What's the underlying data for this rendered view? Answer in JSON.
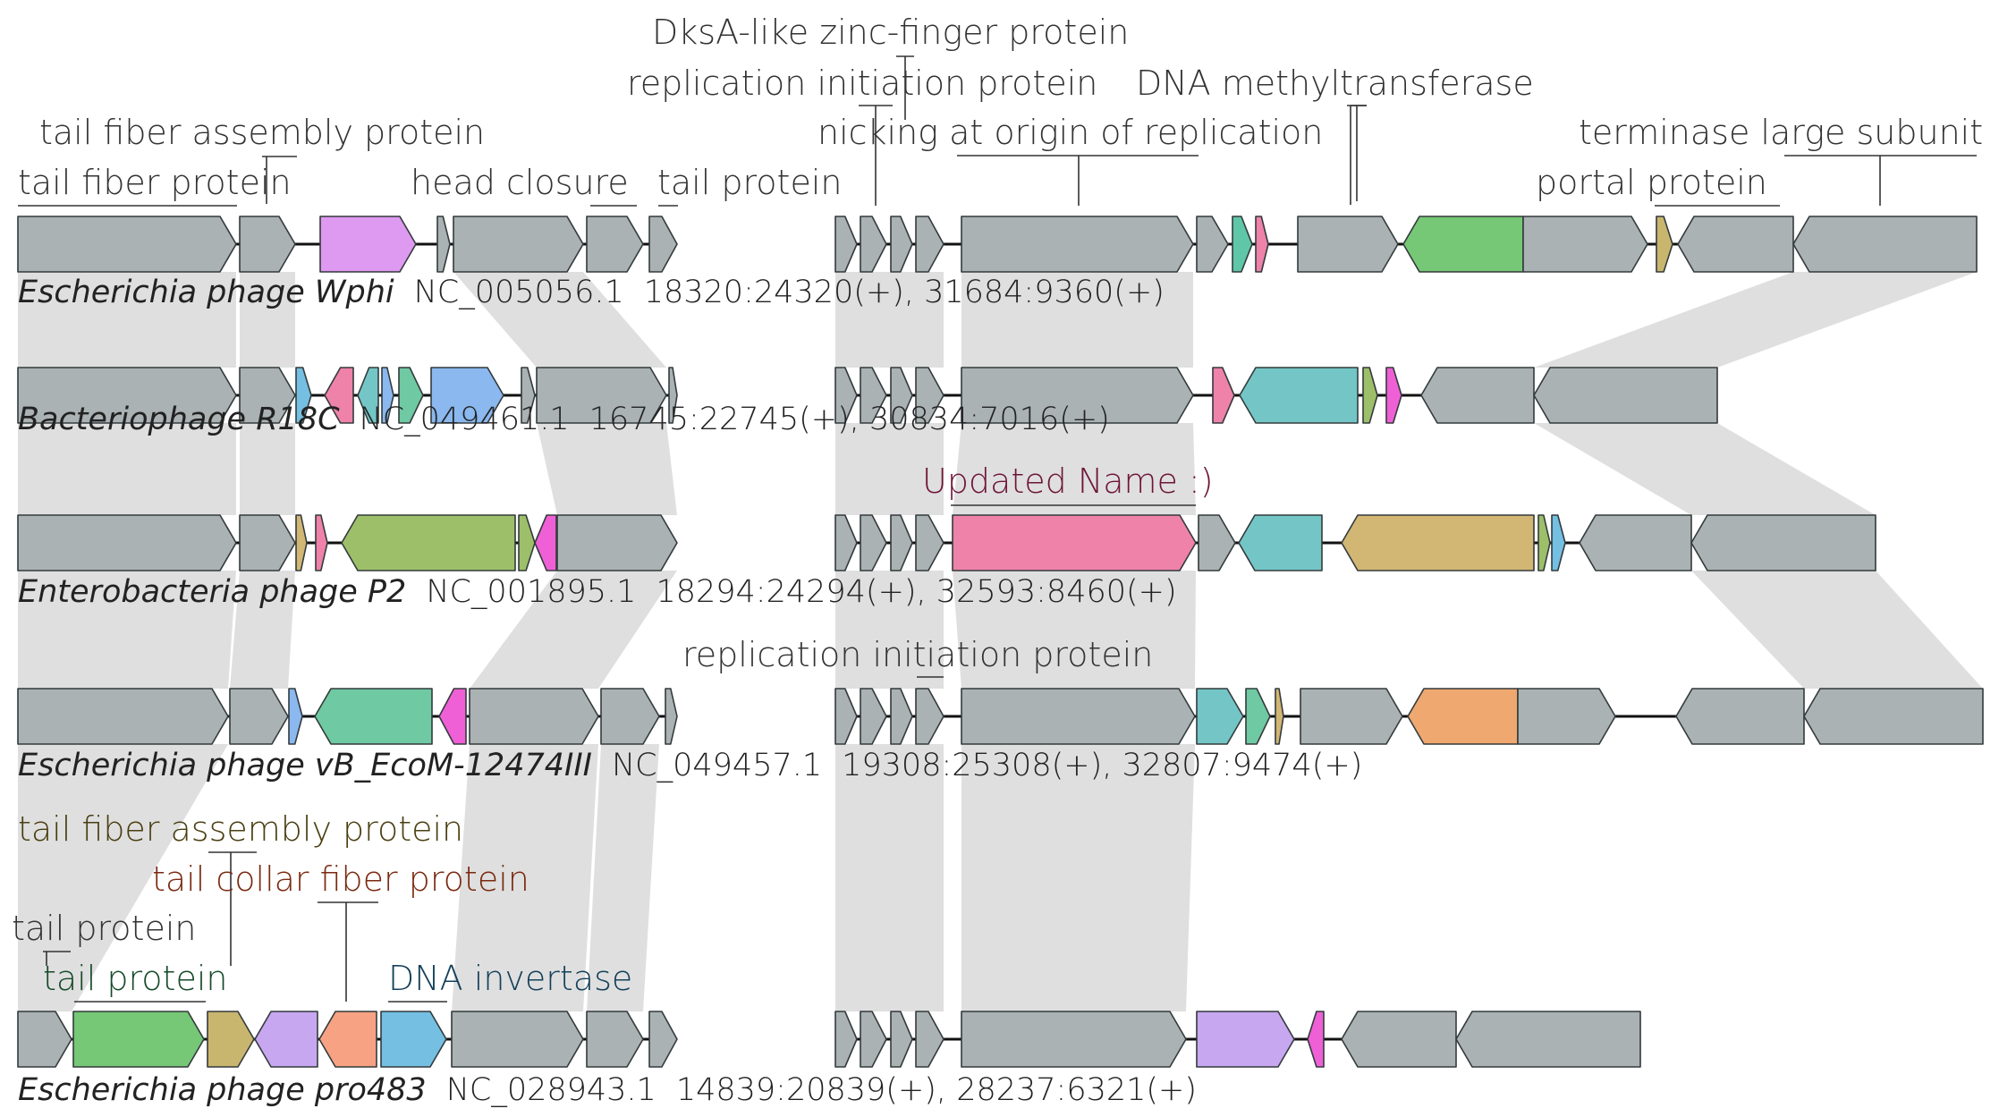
{
  "colors": {
    "gray": "#abb2b3",
    "pink": "#ee82a8",
    "violet": "#de9af0",
    "green": "#76c776",
    "teal": "#74c6c6",
    "olive": "#9dbf6a",
    "gold": "#d2b674",
    "orange": "#efa870",
    "blue": "#8ab8ef",
    "lavender": "#c7a7f0",
    "seafoam": "#6fc9a2",
    "magenta": "#ef60d6",
    "salmon": "#f7a283",
    "sky": "#74bfe2",
    "khaki": "#c9b66e"
  },
  "tracks": [
    {
      "organism": "Escherichia phage Wphi",
      "accession": "NC_005056.1",
      "ranges": "18320:24320(+), 31684:9360(+)"
    },
    {
      "organism": "Bacteriophage R18C",
      "accession": "NC_049461.1",
      "ranges": "16745:22745(+), 30834:7016(+)"
    },
    {
      "organism": "Enterobacteria phage P2",
      "accession": "NC_001895.1",
      "ranges": "18294:24294(+), 32593:8460(+)"
    },
    {
      "organism": "Escherichia phage vB_EcoM-12474III",
      "accession": "NC_049457.1",
      "ranges": "19308:25308(+), 32807:9474(+)"
    },
    {
      "organism": "Escherichia phage pro483",
      "accession": "NC_028943.1",
      "ranges": "14839:20839(+), 28237:6321(+)"
    }
  ],
  "gene_labels": [
    {
      "text": "DksA-like zinc-finger protein",
      "color": "#333333"
    },
    {
      "text": "replication initiation protein",
      "color": "#333333"
    },
    {
      "text": "DNA methyltransferase",
      "color": "#333333"
    },
    {
      "text": "tail fiber assembly protein",
      "color": "#333333"
    },
    {
      "text": "nicking at origin of replication",
      "color": "#333333"
    },
    {
      "text": "terminase large subunit",
      "color": "#333333"
    },
    {
      "text": "tail fiber protein",
      "color": "#333333"
    },
    {
      "text": "head closure",
      "color": "#333333"
    },
    {
      "text": "tail protein",
      "color": "#333333"
    },
    {
      "text": "portal protein",
      "color": "#333333"
    },
    {
      "text": "Updated Name :)",
      "color": "#6e1538"
    },
    {
      "text": "replication initiation protein",
      "color": "#333333"
    },
    {
      "text": "tail fiber assembly protein",
      "color": "#4a3f12"
    },
    {
      "text": "tail collar fiber protein",
      "color": "#7a2a10"
    },
    {
      "text": "tail protein",
      "color": "#333333"
    },
    {
      "text": "tail protein",
      "color": "#164a2a"
    },
    {
      "text": "DNA invertase",
      "color": "#14405a"
    }
  ]
}
